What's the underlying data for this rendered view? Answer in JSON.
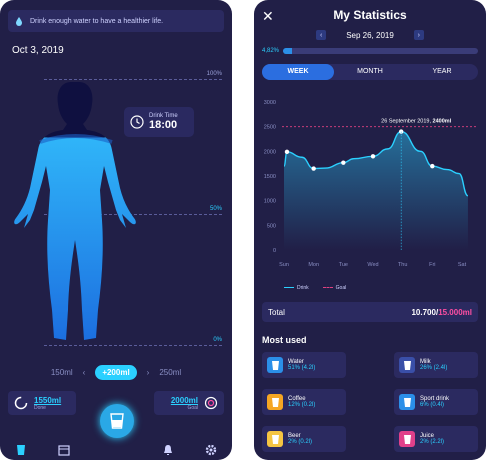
{
  "left": {
    "tip": "Drink enough water to have a healthier life.",
    "date": "Oct 3, 2019",
    "levels": [
      "100%",
      "50%",
      "0%"
    ],
    "drink_time": {
      "label": "Drink Time",
      "value": "18:00"
    },
    "amounts": [
      "150ml",
      "+200ml",
      "250ml"
    ],
    "done": {
      "value": "1550ml",
      "label": "Done"
    },
    "goal": {
      "value": "2000ml",
      "label": "Goal"
    },
    "fill_level": 0.78,
    "tabs": [
      "cup-icon",
      "calendar-icon",
      "water-button",
      "bell-icon",
      "gear-icon"
    ]
  },
  "right": {
    "title": "My Statistics",
    "date": "Sep 26, 2019",
    "progress_label": "4,82%",
    "progress": 0.0482,
    "segments": [
      "WEEK",
      "MONTH",
      "YEAR"
    ],
    "active_segment": "WEEK",
    "legend": {
      "drink": "Drink",
      "goal": "Goal"
    },
    "total": {
      "label": "Total",
      "value": "10.700/",
      "goal": "15.000",
      "unit": "ml"
    },
    "most_used_title": "Most used",
    "drinks": [
      {
        "name": "Water",
        "pct": "51% (4.2l)",
        "color": "#2b8fe8",
        "icon": "water-glass-icon"
      },
      {
        "name": "Milk",
        "pct": "26% (2.4l)",
        "color": "#3a4fa8",
        "icon": "milk-bottle-icon"
      },
      {
        "name": "Coffee",
        "pct": "12% (0.2l)",
        "color": "#f5a623",
        "icon": "coffee-icon"
      },
      {
        "name": "Sport drink",
        "pct": "6% (0.4l)",
        "color": "#2b8fe8",
        "icon": "sport-drink-icon"
      },
      {
        "name": "Beer",
        "pct": "2% (0.2l)",
        "color": "#f5c542",
        "icon": "beer-icon"
      },
      {
        "name": "Juice",
        "pct": "2% (2.2l)",
        "color": "#e0408a",
        "icon": "juice-icon"
      }
    ]
  },
  "chart_data": {
    "type": "area",
    "categories": [
      "Sun",
      "Mon",
      "Tue",
      "Wed",
      "Thu",
      "Fri",
      "Sat"
    ],
    "series": [
      {
        "name": "Drink",
        "x": [
          0,
          0.1,
          0.6,
          1,
          1.4,
          2,
          2.35,
          3,
          3.5,
          3.95,
          4.6,
          5,
          5.5,
          5.9,
          6.2
        ],
        "values": [
          1700,
          1990,
          1880,
          1650,
          1660,
          1770,
          1850,
          1900,
          2050,
          2400,
          2000,
          1700,
          1630,
          1550,
          1100
        ]
      }
    ],
    "goal": 2500,
    "annotation": {
      "date": "26 September 2019,",
      "value": "2400ml"
    },
    "ylim": [
      0,
      3000
    ],
    "yticks": [
      0,
      500,
      1000,
      1500,
      2000,
      2500,
      3000
    ],
    "grid": false,
    "legend": "bottom-left"
  }
}
